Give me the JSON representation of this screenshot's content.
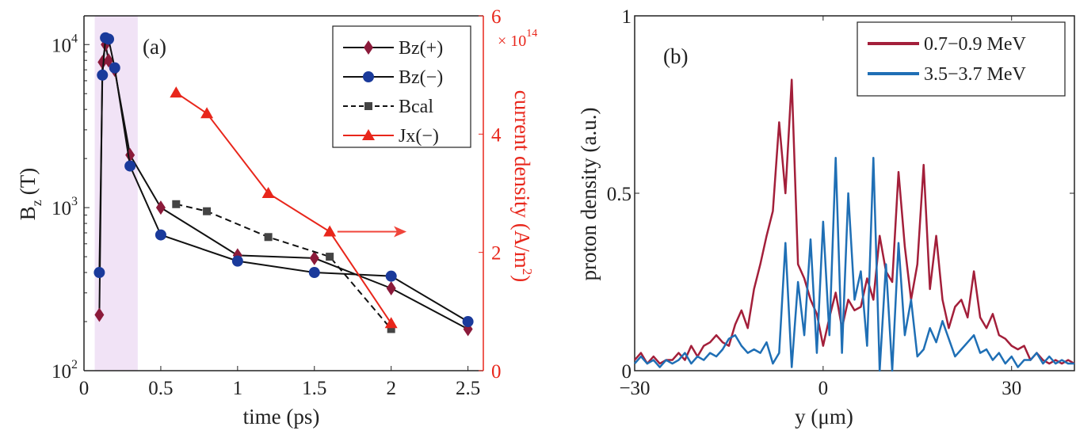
{
  "chart_data": [
    {
      "type": "line",
      "panel_label": "(a)",
      "xlabel": "time (ps)",
      "ylabel": "B",
      "ylabel_sub": "z",
      "ylabel_unit": "(T)",
      "y_scale": "log",
      "xlim": [
        0,
        2.6
      ],
      "ylim": [
        100,
        15000
      ],
      "x_ticks": [
        "0",
        "0.5",
        "1",
        "1.5",
        "2",
        "2.5"
      ],
      "x_tick_values": [
        0,
        0.5,
        1,
        1.5,
        2,
        2.5
      ],
      "y_ticks": [
        {
          "base": "10",
          "exp": "2",
          "value": 100
        },
        {
          "base": "10",
          "exp": "3",
          "value": 1000
        },
        {
          "base": "10",
          "exp": "4",
          "value": 10000
        }
      ],
      "y2label": "current density (A/m",
      "y2label_sup": "2",
      "y2label_end": ")",
      "y2_multiplier": "× 10",
      "y2_multiplier_exp": "14",
      "y2lim": [
        0,
        6
      ],
      "y2_ticks": [
        "0",
        "2",
        "4",
        "6"
      ],
      "y2_tick_values": [
        0,
        2,
        4,
        6
      ],
      "y2_color": "#e8261b",
      "shaded_region": {
        "x": [
          0.07,
          0.35
        ],
        "color": "#f1e3f6"
      },
      "annotation_arrow": {
        "from": [
          1.65,
          2.35
        ],
        "to": [
          2.1,
          2.35
        ],
        "axis": "right",
        "color": "#f0443a"
      },
      "legend_placement": "top-right",
      "series": [
        {
          "name": "Bz(+)",
          "marker": "diamond",
          "color": "#8b1a3a",
          "line": "solid",
          "axis": "left",
          "x": [
            0.1,
            0.12,
            0.14,
            0.16,
            0.2,
            0.3,
            0.5,
            1,
            1.5,
            2,
            2.5
          ],
          "y": [
            220,
            7800,
            10000,
            8000,
            7000,
            2100,
            1000,
            510,
            490,
            320,
            180
          ]
        },
        {
          "name": "Bz(−)",
          "marker": "circle",
          "color": "#1a3a9b",
          "line": "solid",
          "axis": "left",
          "x": [
            0.1,
            0.12,
            0.14,
            0.16,
            0.2,
            0.3,
            0.5,
            1,
            1.5,
            2,
            2.5
          ],
          "y": [
            400,
            6500,
            11000,
            10800,
            7200,
            1800,
            680,
            470,
            400,
            380,
            200
          ]
        },
        {
          "name": "Bcal",
          "marker": "square",
          "color": "#444444",
          "line": "dashed",
          "axis": "left",
          "x": [
            0.6,
            0.8,
            1.2,
            1.6,
            2
          ],
          "y": [
            1050,
            950,
            660,
            500,
            180
          ]
        },
        {
          "name": "Jx(−)",
          "marker": "triangle",
          "color": "#e8261b",
          "line": "solid",
          "axis": "right",
          "x": [
            0.6,
            0.8,
            1.2,
            1.6,
            2
          ],
          "y": [
            4.7,
            4.35,
            3.0,
            2.35,
            0.8
          ]
        }
      ]
    },
    {
      "type": "line",
      "panel_label": "(b)",
      "xlabel": "y (μm)",
      "ylabel": "proton density (a.u.)",
      "xlim": [
        -30,
        40
      ],
      "ylim": [
        0,
        1
      ],
      "x_ticks": [
        "−30",
        "0",
        "30"
      ],
      "x_tick_values": [
        -30,
        0,
        30
      ],
      "y_ticks": [
        "0",
        "0.5",
        "1"
      ],
      "y_tick_values": [
        0,
        0.5,
        1
      ],
      "legend_placement": "top-right",
      "x": [
        -30,
        -29,
        -28,
        -27,
        -26,
        -25,
        -24,
        -23,
        -22,
        -21,
        -20,
        -19,
        -18,
        -17,
        -16,
        -15,
        -14,
        -13,
        -12,
        -11,
        -10,
        -9,
        -8,
        -7,
        -6,
        -5,
        -4,
        -3,
        -2,
        -1,
        0,
        1,
        2,
        3,
        4,
        5,
        6,
        7,
        8,
        9,
        10,
        11,
        12,
        13,
        14,
        15,
        16,
        17,
        18,
        19,
        20,
        21,
        22,
        23,
        24,
        25,
        26,
        27,
        28,
        29,
        30,
        31,
        32,
        33,
        34,
        35,
        36,
        37,
        38,
        39,
        40
      ],
      "series": [
        {
          "name": "0.7−0.9 MeV",
          "color": "#a31f3a",
          "values": [
            0.03,
            0.05,
            0.02,
            0.04,
            0.02,
            0.03,
            0.03,
            0.05,
            0.03,
            0.07,
            0.04,
            0.07,
            0.08,
            0.1,
            0.08,
            0.07,
            0.13,
            0.17,
            0.12,
            0.23,
            0.3,
            0.38,
            0.45,
            0.7,
            0.5,
            0.82,
            0.3,
            0.26,
            0.2,
            0.16,
            0.07,
            0.15,
            0.22,
            0.12,
            0.2,
            0.17,
            0.18,
            0.26,
            0.2,
            0.38,
            0.28,
            0.25,
            0.56,
            0.35,
            0.2,
            0.3,
            0.58,
            0.23,
            0.38,
            0.2,
            0.12,
            0.18,
            0.2,
            0.15,
            0.28,
            0.15,
            0.12,
            0.16,
            0.1,
            0.09,
            0.07,
            0.06,
            0.07,
            0.03,
            0.05,
            0.03,
            0.02,
            0.03,
            0.02,
            0.03,
            0.02
          ]
        },
        {
          "name": "3.5−3.7 MeV",
          "color": "#1f6fb5",
          "values": [
            0.02,
            0.04,
            0.02,
            0.03,
            0.01,
            0.03,
            0.02,
            0.03,
            0.05,
            0.02,
            0.04,
            0.03,
            0.05,
            0.04,
            0.06,
            0.09,
            0.1,
            0.07,
            0.05,
            0.06,
            0.05,
            0.08,
            0.02,
            0.05,
            0.36,
            0.01,
            0.25,
            0.1,
            0.37,
            0.05,
            0.42,
            0.1,
            0.6,
            0.05,
            0.5,
            0.2,
            0.28,
            0.07,
            0.6,
            0.0,
            0.3,
            0.0,
            0.36,
            0.1,
            0.2,
            0.04,
            0.06,
            0.12,
            0.08,
            0.14,
            0.09,
            0.04,
            0.06,
            0.08,
            0.1,
            0.05,
            0.06,
            0.03,
            0.05,
            0.02,
            0.04,
            0.01,
            0.03,
            0.03,
            0.05,
            0.02,
            0.04,
            0.02,
            0.03,
            0.02,
            0.02
          ]
        }
      ]
    }
  ]
}
